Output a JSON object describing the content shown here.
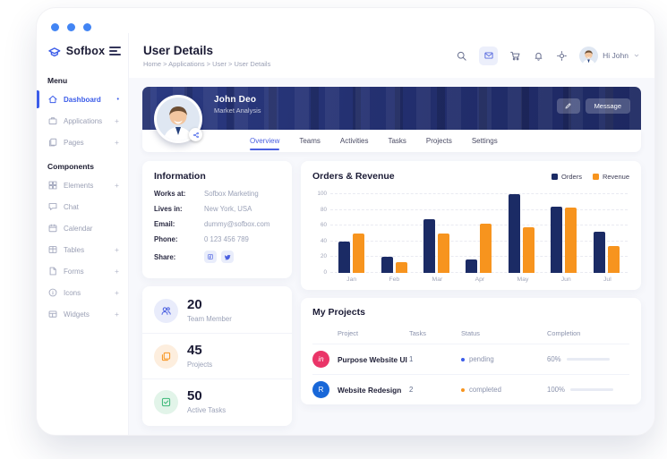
{
  "colors": {
    "accent": "#3b5ce9",
    "banner_navy": "#222e6d",
    "orders": "#1b2b65",
    "revenue": "#f7941e",
    "pending_dot": "#3b5ce9",
    "completed_dot": "#f7941e"
  },
  "sidebar": {
    "logo_text": "Sofbox",
    "sections": [
      {
        "label": "Menu",
        "items": [
          {
            "label": "Dashboard",
            "icon": "home-icon",
            "suffix": "•",
            "active": true
          },
          {
            "label": "Applications",
            "icon": "briefcase-icon",
            "suffix": "+",
            "active": false
          },
          {
            "label": "Pages",
            "icon": "pages-icon",
            "suffix": "+",
            "active": false
          }
        ]
      },
      {
        "label": "Components",
        "items": [
          {
            "label": "Elements",
            "icon": "grid-icon",
            "suffix": "+",
            "active": false
          },
          {
            "label": "Chat",
            "icon": "chat-icon",
            "suffix": "",
            "active": false
          },
          {
            "label": "Calendar",
            "icon": "calendar-icon",
            "suffix": "",
            "active": false
          },
          {
            "label": "Tables",
            "icon": "table-icon",
            "suffix": "+",
            "active": false
          },
          {
            "label": "Forms",
            "icon": "file-icon",
            "suffix": "+",
            "active": false
          },
          {
            "label": "Icons",
            "icon": "info-icon",
            "suffix": "+",
            "active": false
          },
          {
            "label": "Widgets",
            "icon": "widgets-icon",
            "suffix": "+",
            "active": false
          }
        ]
      }
    ]
  },
  "header": {
    "title": "User Details",
    "breadcrumb": "Home > Applications > User > User Details",
    "user_greeting": "Hi John"
  },
  "profile": {
    "name": "John Deo",
    "role": "Market Analysis",
    "message_button": "Message"
  },
  "tabs": [
    {
      "label": "Overview",
      "active": true
    },
    {
      "label": "Teams",
      "active": false
    },
    {
      "label": "Activities",
      "active": false
    },
    {
      "label": "Tasks",
      "active": false
    },
    {
      "label": "Projects",
      "active": false
    },
    {
      "label": "Settings",
      "active": false
    }
  ],
  "information": {
    "title": "Information",
    "rows": [
      {
        "label": "Works at:",
        "value": "Sofbox Marketing"
      },
      {
        "label": "Lives in:",
        "value": "New York, USA"
      },
      {
        "label": "Email:",
        "value": "dummy@sofbox.com"
      },
      {
        "label": "Phone:",
        "value": "0 123 456 789"
      }
    ],
    "share_label": "Share:",
    "share_icons": [
      "facebook-icon",
      "twitter-icon"
    ]
  },
  "stats": [
    {
      "value": "20",
      "label": "Team Member",
      "icon": "team-icon",
      "bg": "#e9ecfb",
      "fg": "#4a5fe0"
    },
    {
      "value": "45",
      "label": "Projects",
      "icon": "copy-icon",
      "bg": "#fdeede",
      "fg": "#f7941e"
    },
    {
      "value": "50",
      "label": "Active Tasks",
      "icon": "check-square-icon",
      "bg": "#e2f4e9",
      "fg": "#3cb878"
    }
  ],
  "chart_data": {
    "type": "bar",
    "title": "Orders & Revenue",
    "categories": [
      "Jan",
      "Feb",
      "Mar",
      "Apr",
      "May",
      "Jun",
      "Jul"
    ],
    "series": [
      {
        "name": "Orders",
        "color": "#1b2b65",
        "values": [
          40,
          20,
          68,
          17,
          100,
          84,
          52
        ]
      },
      {
        "name": "Revenue",
        "color": "#f7941e",
        "values": [
          50,
          14,
          50,
          62,
          58,
          83,
          34
        ]
      }
    ],
    "ylim": [
      0,
      100
    ],
    "yticks": [
      0,
      20,
      40,
      60,
      80,
      100
    ],
    "grid": "dashed-horizontal",
    "legend_position": "top-right",
    "xlabel": "",
    "ylabel": ""
  },
  "projects": {
    "title": "My Projects",
    "columns": [
      "Project",
      "Tasks",
      "Status",
      "Completion"
    ],
    "rows": [
      {
        "name": "Purpose Website UI",
        "badge_text": "in",
        "badge_color": "#ea3568",
        "tasks": "1",
        "status": "pending",
        "status_color": "#3b5ce9",
        "completion": "60%",
        "completion_value": 60,
        "bar_color": "#5065da"
      },
      {
        "name": "Website Redesign",
        "badge_text": "R",
        "badge_color": "#1867d8",
        "tasks": "2",
        "status": "completed",
        "status_color": "#f7941e",
        "completion": "100%",
        "completion_value": 100,
        "bar_color": "#f7941e"
      }
    ]
  }
}
